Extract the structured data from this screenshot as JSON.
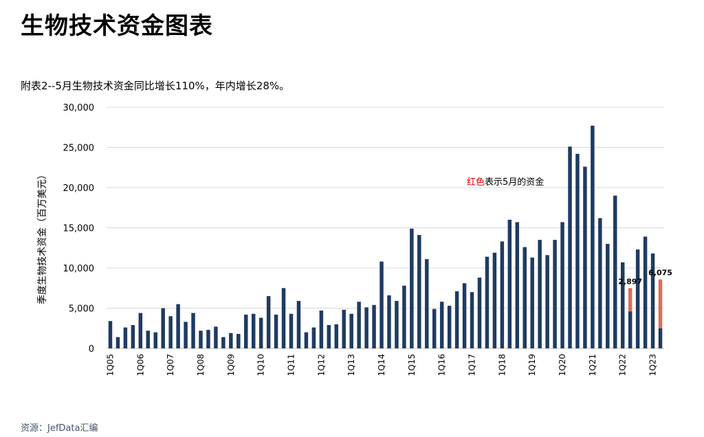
{
  "page_title": "生物技术资金图表",
  "source": "资源：JefData汇编",
  "chart_data": {
    "type": "bar",
    "subtitle": "附表2--5月生物技术资金同比增长110%，年内增长28%。",
    "ylabel": "季度生物技术资金（百万美元）",
    "ylim": [
      0,
      30000
    ],
    "yticks": [
      0,
      5000,
      10000,
      15000,
      20000,
      25000,
      30000
    ],
    "ytick_labels": [
      "0",
      "5,000",
      "10,000",
      "15,000",
      "20,000",
      "25,000",
      "30,000"
    ],
    "grid": true,
    "categories": [
      "1Q05",
      "2Q05",
      "3Q05",
      "4Q05",
      "1Q06",
      "2Q06",
      "3Q06",
      "4Q06",
      "1Q07",
      "2Q07",
      "3Q07",
      "4Q07",
      "1Q08",
      "2Q08",
      "3Q08",
      "4Q08",
      "1Q09",
      "2Q09",
      "3Q09",
      "4Q09",
      "1Q10",
      "2Q10",
      "3Q10",
      "4Q10",
      "1Q11",
      "2Q11",
      "3Q11",
      "4Q11",
      "1Q12",
      "2Q12",
      "3Q12",
      "4Q12",
      "1Q13",
      "2Q13",
      "3Q13",
      "4Q13",
      "1Q14",
      "2Q14",
      "3Q14",
      "4Q14",
      "1Q15",
      "2Q15",
      "3Q15",
      "4Q15",
      "1Q16",
      "2Q16",
      "3Q16",
      "4Q16",
      "1Q17",
      "2Q17",
      "3Q17",
      "4Q17",
      "1Q18",
      "2Q18",
      "3Q18",
      "4Q18",
      "1Q19",
      "2Q19",
      "3Q19",
      "4Q19",
      "1Q20",
      "2Q20",
      "3Q20",
      "4Q20",
      "1Q21",
      "2Q21",
      "3Q21",
      "4Q21",
      "1Q22",
      "2Q22",
      "3Q22",
      "4Q22",
      "1Q23",
      "2Q23"
    ],
    "tick_labels": [
      "1Q05",
      "1Q06",
      "1Q07",
      "1Q08",
      "1Q09",
      "1Q10",
      "1Q11",
      "1Q12",
      "1Q13",
      "1Q14",
      "1Q15",
      "1Q16",
      "1Q17",
      "1Q18",
      "1Q19",
      "1Q20",
      "1Q21",
      "1Q22",
      "1Q23"
    ],
    "series": [
      {
        "color": "#1f3b63",
        "values": [
          3400,
          1400,
          2600,
          2900,
          4400,
          2200,
          2000,
          5000,
          4000,
          5500,
          3300,
          4400,
          2200,
          2300,
          2700,
          1400,
          1900,
          1800,
          4200,
          4300,
          3800,
          6500,
          4200,
          7500,
          4300,
          5900,
          2000,
          2600,
          4700,
          2900,
          3000,
          4800,
          4300,
          5800,
          5100,
          5400,
          10800,
          6600,
          5900,
          7800,
          14900,
          14100,
          11100,
          4900,
          5800,
          5300,
          7100,
          8100,
          7000,
          8800,
          11400,
          11900,
          13300,
          16000,
          15700,
          12600,
          11300,
          13500,
          11600,
          13500,
          15700,
          25100,
          24200,
          22600,
          27700,
          16200,
          13000,
          19000,
          10700,
          4600,
          12300,
          13900,
          11800,
          2500
        ]
      },
      {
        "color": "#e06c5c",
        "values": [
          0,
          0,
          0,
          0,
          0,
          0,
          0,
          0,
          0,
          0,
          0,
          0,
          0,
          0,
          0,
          0,
          0,
          0,
          0,
          0,
          0,
          0,
          0,
          0,
          0,
          0,
          0,
          0,
          0,
          0,
          0,
          0,
          0,
          0,
          0,
          0,
          0,
          0,
          0,
          0,
          0,
          0,
          0,
          0,
          0,
          0,
          0,
          0,
          0,
          0,
          0,
          0,
          0,
          0,
          0,
          0,
          0,
          0,
          0,
          0,
          0,
          0,
          0,
          0,
          0,
          0,
          0,
          0,
          0,
          2897,
          0,
          0,
          0,
          6075
        ]
      }
    ],
    "data_labels": [
      {
        "category": "2Q22",
        "text": "2,897"
      },
      {
        "category": "2Q23",
        "text": "6,075"
      }
    ],
    "annotation": {
      "highlight": "红色",
      "text": "表示5月的资金"
    }
  }
}
